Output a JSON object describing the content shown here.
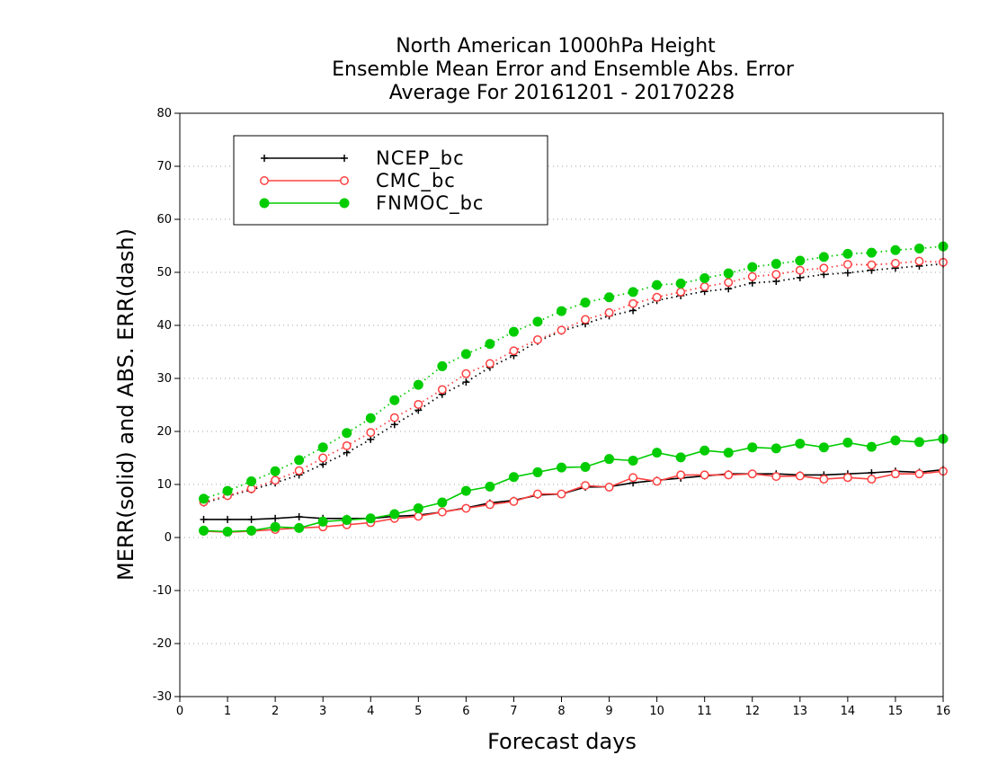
{
  "chart_data": {
    "type": "line",
    "title_lines": [
      "North American 1000hPa Height",
      "Ensemble Mean Error and Ensemble Abs. Error",
      "Average For 20161201 - 20170228"
    ],
    "xlabel": "Forecast days",
    "ylabel": "MERR(solid) and ABS. ERR(dash)",
    "xlim": [
      0,
      16
    ],
    "ylim": [
      -30,
      80
    ],
    "xticks": [
      0,
      1,
      2,
      3,
      4,
      5,
      6,
      7,
      8,
      9,
      10,
      11,
      12,
      13,
      14,
      15,
      16
    ],
    "yticks": [
      -30,
      -20,
      -10,
      0,
      10,
      20,
      30,
      40,
      50,
      60,
      70,
      80
    ],
    "grid": true,
    "legend_position": "top-left",
    "x": [
      0.5,
      1.0,
      1.5,
      2.0,
      2.5,
      3.0,
      3.5,
      4.0,
      4.5,
      5.0,
      5.5,
      6.0,
      6.5,
      7.0,
      7.5,
      8.0,
      8.5,
      9.0,
      9.5,
      10.0,
      10.5,
      11.0,
      11.5,
      12.0,
      12.5,
      13.0,
      13.5,
      14.0,
      14.5,
      15.0,
      15.5,
      16.0
    ],
    "series": [
      {
        "name": "NCEP_bc",
        "color": "#000000",
        "marker": "plus",
        "merr": [
          3.4,
          3.4,
          3.4,
          3.6,
          3.9,
          3.6,
          3.6,
          3.6,
          4.0,
          4.2,
          4.8,
          5.6,
          6.5,
          7.0,
          8.0,
          8.2,
          9.5,
          9.6,
          10.3,
          10.8,
          11.2,
          11.6,
          12.0,
          12.0,
          12.0,
          11.8,
          11.8,
          12.0,
          12.2,
          12.5,
          12.3,
          12.8
        ],
        "abs_err": [
          6.5,
          7.8,
          9.0,
          10.3,
          11.8,
          13.8,
          16.0,
          18.5,
          21.3,
          24.0,
          27.0,
          29.3,
          32.1,
          34.3,
          37.0,
          38.9,
          40.3,
          41.8,
          42.8,
          44.7,
          45.6,
          46.4,
          46.9,
          48.0,
          48.3,
          49.0,
          49.6,
          49.9,
          50.4,
          50.8,
          51.2,
          51.6
        ]
      },
      {
        "name": "CMC_bc",
        "color": "#ff4040",
        "marker": "open-circle",
        "merr": [
          1.2,
          1.0,
          1.2,
          1.5,
          1.8,
          2.0,
          2.4,
          2.8,
          3.6,
          4.0,
          4.8,
          5.5,
          6.2,
          6.8,
          8.2,
          8.2,
          9.8,
          9.5,
          11.3,
          10.6,
          11.8,
          11.8,
          11.8,
          12.0,
          11.5,
          11.6,
          11.0,
          11.3,
          11.0,
          12.0,
          12.0,
          12.5
        ],
        "abs_err": [
          6.7,
          7.9,
          9.2,
          10.8,
          12.6,
          15.0,
          17.3,
          19.8,
          22.6,
          25.1,
          27.9,
          30.9,
          32.8,
          35.2,
          37.3,
          39.1,
          41.1,
          42.4,
          44.1,
          45.3,
          46.3,
          47.3,
          48.1,
          49.2,
          49.6,
          50.4,
          50.8,
          51.5,
          51.4,
          51.7,
          52.1,
          51.9
        ]
      },
      {
        "name": "FNMOC_bc",
        "color": "#00cc00",
        "marker": "filled-circle",
        "merr": [
          1.3,
          1.1,
          1.3,
          2.0,
          1.8,
          3.0,
          3.3,
          3.6,
          4.4,
          5.5,
          6.6,
          8.8,
          9.6,
          11.4,
          12.3,
          13.2,
          13.3,
          14.8,
          14.5,
          16.0,
          15.1,
          16.4,
          16.0,
          17.0,
          16.8,
          17.7,
          17.0,
          17.9,
          17.1,
          18.3,
          18.0,
          18.6
        ],
        "abs_err": [
          7.3,
          8.8,
          10.6,
          12.5,
          14.6,
          17.0,
          19.7,
          22.5,
          25.9,
          28.8,
          32.3,
          34.6,
          36.5,
          38.8,
          40.7,
          42.7,
          44.3,
          45.3,
          46.3,
          47.6,
          47.9,
          48.9,
          49.8,
          51.0,
          51.6,
          52.2,
          52.9,
          53.5,
          53.7,
          54.2,
          54.5,
          54.9
        ]
      }
    ]
  }
}
